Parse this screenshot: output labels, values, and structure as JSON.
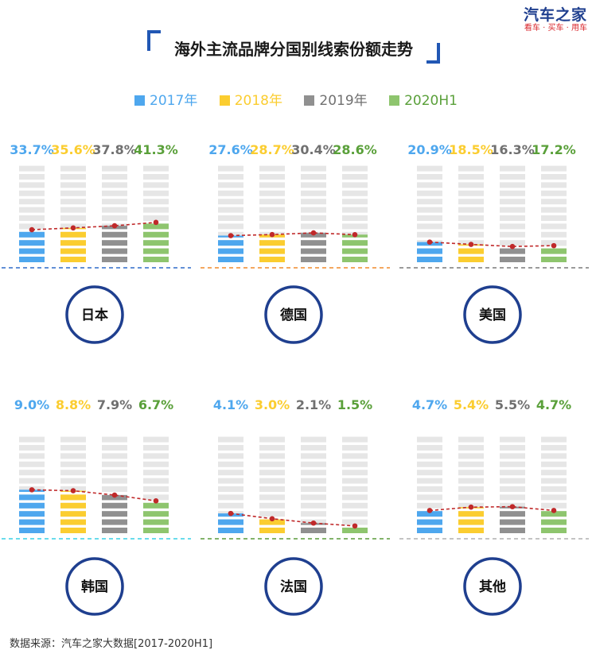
{
  "logo": {
    "main": "汽车之家",
    "sub": "看车 · 买车 · 用车"
  },
  "title": "海外主流品牌分国别线索份额走势",
  "colors": {
    "2017年": "#4ea7ee",
    "2018年": "#fbcd30",
    "2019年": "#909090",
    "2020H1": "#8ec56e",
    "trend_line": "#c0292a",
    "circle_border": "#1f3f8f",
    "empty_segment": "#e6e6e6",
    "baselines": [
      "#2f6cc8",
      "#f08a2c",
      "#7a7a7a",
      "#38d0e6",
      "#5a9a3a",
      "#b0b0b0"
    ]
  },
  "chart_data": {
    "type": "bar",
    "title": "海外主流品牌分国别线索份额走势",
    "series_names": [
      "2017年",
      "2018年",
      "2019年",
      "2020H1"
    ],
    "legend_position": "top",
    "grid": false,
    "panels": [
      {
        "country": "日本",
        "ylim": [
          0,
          100
        ],
        "series": [
          {
            "name": "2017年",
            "value": 33.7,
            "label": "33.7%"
          },
          {
            "name": "2018年",
            "value": 35.6,
            "label": "35.6%"
          },
          {
            "name": "2019年",
            "value": 37.8,
            "label": "37.8%"
          },
          {
            "name": "2020H1",
            "value": 41.3,
            "label": "41.3%"
          }
        ]
      },
      {
        "country": "德国",
        "ylim": [
          0,
          100
        ],
        "series": [
          {
            "name": "2017年",
            "value": 27.6,
            "label": "27.6%"
          },
          {
            "name": "2018年",
            "value": 28.7,
            "label": "28.7%"
          },
          {
            "name": "2019年",
            "value": 30.4,
            "label": "30.4%"
          },
          {
            "name": "2020H1",
            "value": 28.6,
            "label": "28.6%"
          }
        ]
      },
      {
        "country": "美国",
        "ylim": [
          0,
          100
        ],
        "series": [
          {
            "name": "2017年",
            "value": 20.9,
            "label": "20.9%"
          },
          {
            "name": "2018年",
            "value": 18.5,
            "label": "18.5%"
          },
          {
            "name": "2019年",
            "value": 16.3,
            "label": "16.3%"
          },
          {
            "name": "2020H1",
            "value": 17.2,
            "label": "17.2%"
          }
        ]
      },
      {
        "country": "韩国",
        "ylim": [
          0,
          20
        ],
        "series": [
          {
            "name": "2017年",
            "value": 9.0,
            "label": "9.0%"
          },
          {
            "name": "2018年",
            "value": 8.8,
            "label": "8.8%"
          },
          {
            "name": "2019年",
            "value": 7.9,
            "label": "7.9%"
          },
          {
            "name": "2020H1",
            "value": 6.7,
            "label": "6.7%"
          }
        ]
      },
      {
        "country": "法国",
        "ylim": [
          0,
          20
        ],
        "series": [
          {
            "name": "2017年",
            "value": 4.1,
            "label": "4.1%"
          },
          {
            "name": "2018年",
            "value": 3.0,
            "label": "3.0%"
          },
          {
            "name": "2019年",
            "value": 2.1,
            "label": "2.1%"
          },
          {
            "name": "2020H1",
            "value": 1.5,
            "label": "1.5%"
          }
        ]
      },
      {
        "country": "其他",
        "ylim": [
          0,
          20
        ],
        "series": [
          {
            "name": "2017年",
            "value": 4.7,
            "label": "4.7%"
          },
          {
            "name": "2018年",
            "value": 5.4,
            "label": "5.4%"
          },
          {
            "name": "2019年",
            "value": 5.5,
            "label": "5.5%"
          },
          {
            "name": "2020H1",
            "value": 4.7,
            "label": "4.7%"
          }
        ]
      }
    ]
  },
  "source": "数据来源：汽车之家大数据[2017-2020H1]"
}
